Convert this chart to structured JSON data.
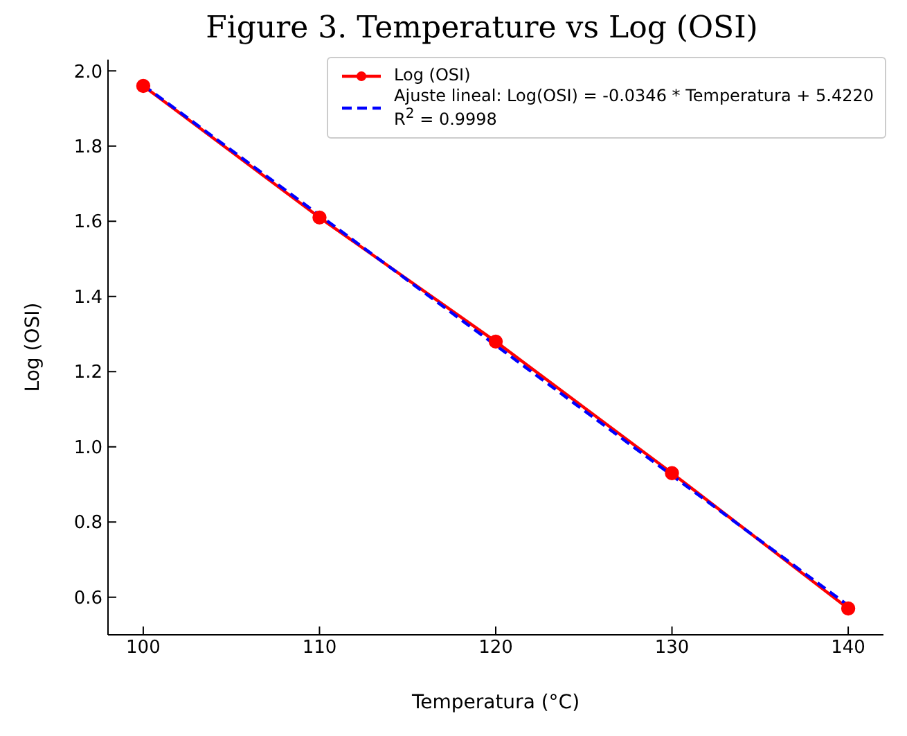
{
  "chart_data": {
    "type": "line",
    "title": "Figure 3. Temperature vs Log (OSI)",
    "xlabel": "Temperatura (°C)",
    "ylabel": "Log (OSI)",
    "x": [
      100,
      110,
      120,
      130,
      140
    ],
    "series": [
      {
        "name": "Log (OSI)",
        "color": "#ff0000",
        "values": [
          1.96,
          1.61,
          1.28,
          0.93,
          0.57
        ],
        "marker": "circle",
        "line_style": "solid"
      },
      {
        "name": "Ajuste lineal: Log(OSI) = -0.0346 * Temperatura + 5.4220\nR$^{2}$ = 0.9998",
        "color": "#0000ff",
        "x": [
          100,
          140
        ],
        "values": [
          1.962,
          0.578
        ],
        "marker": "none",
        "line_style": "dashed"
      }
    ],
    "xlim": [
      98,
      142
    ],
    "xticks": [
      100,
      110,
      120,
      130,
      140
    ],
    "ylim": [
      0.5,
      2.03
    ],
    "yticks": [
      0.6,
      0.8,
      {
        "value": 1,
        "label": "1.0"
      },
      1.2,
      1.4,
      1.6,
      1.8,
      {
        "value": 2,
        "label": "2.0"
      }
    ],
    "legend": "top right"
  }
}
